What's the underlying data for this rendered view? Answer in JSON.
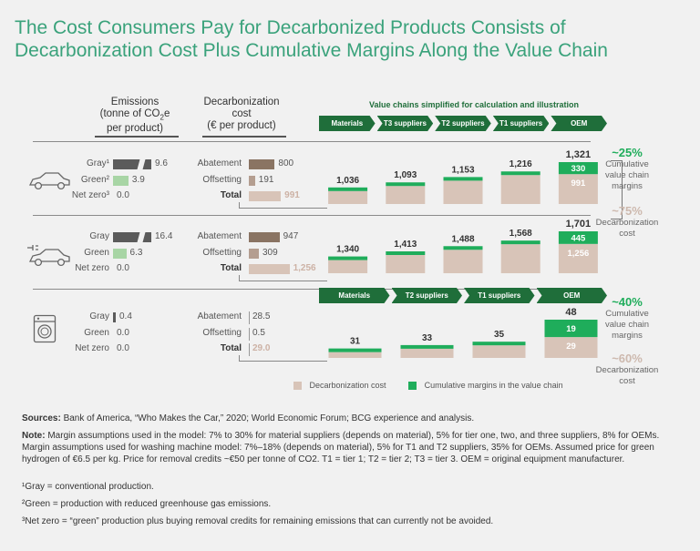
{
  "title": "The Cost Consumers Pay for Decarbonized Products Consists of Decarbonization Cost Plus Cumulative Margins Along the Value Chain",
  "headers": {
    "emissions": [
      "Emissions",
      "(tonne of CO",
      "2",
      "e",
      "per product)"
    ],
    "decarb": [
      "Decarbonization",
      "cost",
      "(€ per product)"
    ],
    "value_chain": "Value chains simplified for calculation and illustration"
  },
  "colors": {
    "accent": "#3aa27b",
    "dark_green": "#1f6e3a",
    "bright_green": "#1fad5b",
    "gray_bar": "#5b5b5b",
    "light_green": "#a8d5a5",
    "brown": "#8a7463",
    "beige": "#d8c4b8"
  },
  "chain5": [
    "Materials",
    "T3 suppliers",
    "T2 suppliers",
    "T1 suppliers",
    "OEM"
  ],
  "chain4": [
    "Materials",
    "T2 suppliers",
    "T1 suppliers",
    "OEM"
  ],
  "sections": [
    {
      "icon": "car-icon",
      "emissions": [
        {
          "label": "Gray¹",
          "value": "9.6"
        },
        {
          "label": "Green²",
          "value": "3.9"
        },
        {
          "label": "Net zero³",
          "value": "0.0"
        }
      ],
      "costs": [
        {
          "label": "Abatement",
          "value": "800"
        },
        {
          "label": "Offsetting",
          "value": "191"
        },
        {
          "label": "Total",
          "value": "991"
        }
      ]
    },
    {
      "icon": "electric-car-icon",
      "emissions": [
        {
          "label": "Gray",
          "value": "16.4"
        },
        {
          "label": "Green",
          "value": "6.3"
        },
        {
          "label": "Net zero",
          "value": "0.0"
        }
      ],
      "costs": [
        {
          "label": "Abatement",
          "value": "947"
        },
        {
          "label": "Offsetting",
          "value": "309"
        },
        {
          "label": "Total",
          "value": "1,256"
        }
      ]
    },
    {
      "icon": "washing-machine-icon",
      "emissions": [
        {
          "label": "Gray",
          "value": "0.4"
        },
        {
          "label": "Green",
          "value": "0.0"
        },
        {
          "label": "Net zero",
          "value": "0.0"
        }
      ],
      "costs": [
        {
          "label": "Abatement",
          "value": "28.5"
        },
        {
          "label": "Offsetting",
          "value": "0.5"
        },
        {
          "label": "Total",
          "value": "29.0"
        }
      ]
    }
  ],
  "side_labels": [
    {
      "pct": "~25%",
      "text": [
        "Cumulative",
        "value chain",
        "margins"
      ]
    },
    {
      "pct": "~75%",
      "text": [
        "Decarbonization",
        "cost"
      ]
    },
    {
      "pct": "~40%",
      "text": [
        "Cumulative",
        "value chain",
        "margins"
      ]
    },
    {
      "pct": "~60%",
      "text": [
        "Decarbonization",
        "cost"
      ]
    }
  ],
  "legend": {
    "decarb": "Decarbonization cost",
    "margins": "Cumulative margins in the value chain"
  },
  "notes": {
    "sources_label": "Sources:",
    "sources": " Bank of America, “Who Makes the Car,” 2020; World Economic Forum; BCG experience and analysis.",
    "note_label": "Note:",
    "note": " Margin assumptions used in the model: 7% to 30% for material suppliers (depends on material), 5% for tier one, two, and three suppliers, 8% for OEMs. Margin assumptions used for washing machine model: 7%–18% (depends on material), 5% for T1 and T2 suppliers, 35% for OEMs. Assumed price for green hydrogen of €6.5 per kg. Price for removal credits ~€50 per tonne of CO2. T1 = tier 1; T2 = tier 2; T3 = tier 3. OEM = original equipment manufacturer.",
    "fn1": "¹Gray = conventional production.",
    "fn2": "²Green = production with reduced greenhouse gas emissions.",
    "fn3": "³Net zero = “green” production plus buying removal credits for remaining emissions that can currently not be avoided."
  },
  "chart_data": [
    {
      "type": "bar",
      "categories": [
        "Materials",
        "T3 suppliers",
        "T2 suppliers",
        "T1 suppliers",
        "OEM"
      ],
      "values": [
        1036,
        1093,
        1153,
        1216,
        1321
      ],
      "labels": [
        "1,036",
        "1,093",
        "1,153",
        "1,216",
        "1,321"
      ],
      "stack": {
        "decarbonization_cost": 991,
        "cumulative_margins": 330,
        "decarb_label": "991",
        "margin_label": "330"
      }
    },
    {
      "type": "bar",
      "categories": [
        "Materials",
        "T3 suppliers",
        "T2 suppliers",
        "T1 suppliers",
        "OEM"
      ],
      "values": [
        1340,
        1413,
        1488,
        1568,
        1701
      ],
      "labels": [
        "1,340",
        "1,413",
        "1,488",
        "1,568",
        "1,701"
      ],
      "stack": {
        "decarbonization_cost": 1256,
        "cumulative_margins": 445,
        "decarb_label": "1,256",
        "margin_label": "445"
      }
    },
    {
      "type": "bar",
      "categories": [
        "Materials",
        "T2 suppliers",
        "T1 suppliers",
        "OEM"
      ],
      "values": [
        31,
        33,
        35,
        48
      ],
      "labels": [
        "31",
        "33",
        "35",
        "48"
      ],
      "stack": {
        "decarbonization_cost": 29,
        "cumulative_margins": 19,
        "decarb_label": "29",
        "margin_label": "19"
      }
    }
  ]
}
